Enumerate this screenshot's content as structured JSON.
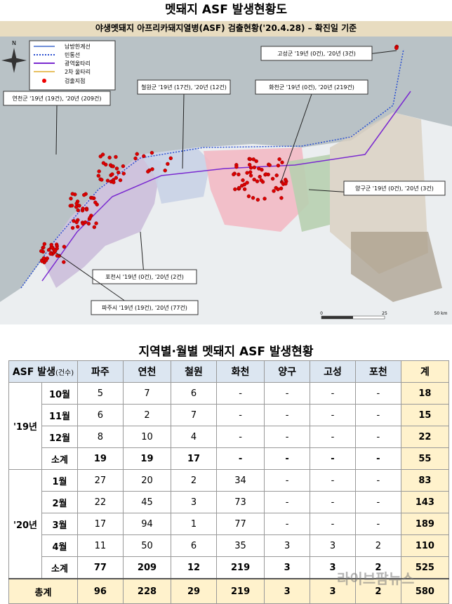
{
  "header": {
    "title": "멧돼지 ASF 발생현황도"
  },
  "map": {
    "subtitle": "야생멧돼지 아프리카돼지열병(ASF) 검출현황('20.4.28) – 확진일 기준",
    "compass": "N",
    "legend": [
      "남방한계선",
      "민통선",
      "광역울타리",
      "2차 울타리",
      "검출지점"
    ],
    "callouts": [
      "고성군 '19년 (0건), '20년 (3건)",
      "연천군 '19년 (19건), '20년 (209건)",
      "철원군 '19년 (17건), '20년 (12건)",
      "화천군 '19년 (0건), '20년 (219건)",
      "양구군 '19년 (0건), '20년 (3건)",
      "포천시 '19년 (0건), '20년 (2건)",
      "파주시 '19년 (19건), '20년 (77건)"
    ],
    "scale": [
      "0",
      "25",
      "50 km"
    ]
  },
  "table": {
    "title": "지역별·월별 멧돼지 ASF 발생현황",
    "corner": "ASF 발생",
    "corner_unit": "(건수)",
    "columns": [
      "파주",
      "연천",
      "철원",
      "화천",
      "양구",
      "고성",
      "포천",
      "계"
    ],
    "groups": [
      {
        "label": "'19년",
        "rows": [
          {
            "label": "10월",
            "cells": [
              5,
              7,
              6,
              "-",
              "-",
              "-",
              "-",
              18
            ]
          },
          {
            "label": "11월",
            "cells": [
              6,
              2,
              7,
              "-",
              "-",
              "-",
              "-",
              15
            ]
          },
          {
            "label": "12월",
            "cells": [
              8,
              10,
              4,
              "-",
              "-",
              "-",
              "-",
              22
            ]
          },
          {
            "label": "소계",
            "cells": [
              19,
              19,
              17,
              "-",
              "-",
              "-",
              "-",
              55
            ]
          }
        ]
      },
      {
        "label": "'20년",
        "rows": [
          {
            "label": "1월",
            "cells": [
              27,
              20,
              2,
              34,
              "-",
              "-",
              "-",
              83
            ]
          },
          {
            "label": "2월",
            "cells": [
              22,
              45,
              3,
              73,
              "-",
              "-",
              "-",
              143
            ]
          },
          {
            "label": "3월",
            "cells": [
              17,
              94,
              1,
              77,
              "-",
              "-",
              "-",
              189
            ]
          },
          {
            "label": "4월",
            "cells": [
              11,
              50,
              6,
              35,
              3,
              3,
              2,
              110
            ]
          },
          {
            "label": "소계",
            "cells": [
              77,
              209,
              12,
              219,
              3,
              3,
              2,
              525
            ]
          }
        ]
      }
    ],
    "total": {
      "label": "총계",
      "cells": [
        96,
        228,
        29,
        219,
        3,
        3,
        2,
        580
      ]
    }
  },
  "watermark": "라이브팜뉴스"
}
